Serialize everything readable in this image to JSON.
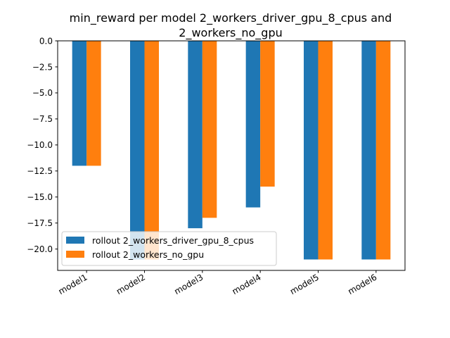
{
  "chart_data": {
    "type": "bar",
    "title": [
      "min_reward per model 2_workers_driver_gpu_8_cpus and",
      "2_workers_no_gpu"
    ],
    "xlabel": "",
    "ylabel": "",
    "categories": [
      "model1",
      "model2",
      "model3",
      "model4",
      "model5",
      "model6"
    ],
    "series": [
      {
        "name": "rollout 2_workers_driver_gpu_8_cpus",
        "color": "#1f77b4",
        "values": [
          -12,
          -21,
          -18,
          -16,
          -21,
          -21
        ]
      },
      {
        "name": "rollout 2_workers_no_gpu",
        "color": "#ff7f0e",
        "values": [
          -12,
          -21,
          -17,
          -14,
          -21,
          -21
        ]
      }
    ],
    "ylim": [
      -22.05,
      0
    ],
    "yticks": [
      0.0,
      -2.5,
      -5.0,
      -7.5,
      -10.0,
      -12.5,
      -15.0,
      -17.5,
      -20.0
    ],
    "ytick_labels": [
      "0.0",
      "−2.5",
      "−5.0",
      "−7.5",
      "−10.0",
      "−12.5",
      "−15.0",
      "−17.5",
      "−20.0"
    ],
    "grid": false,
    "legend_position": "lower-left"
  }
}
